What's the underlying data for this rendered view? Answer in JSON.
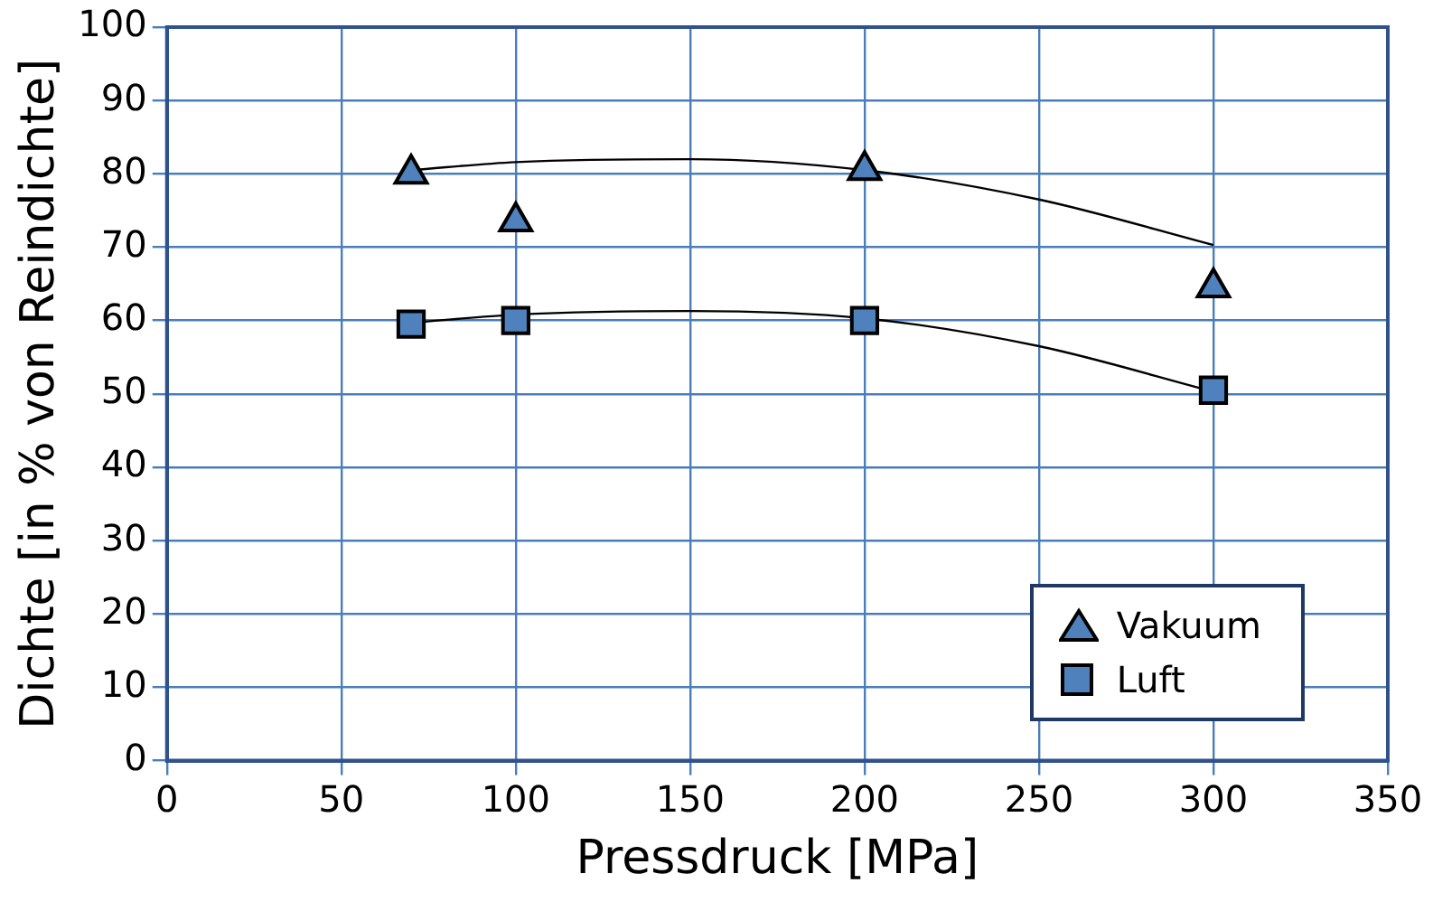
{
  "chart_data": {
    "type": "scatter",
    "xlabel": "Pressdruck [MPa]",
    "ylabel": "Dichte [in % von Reindichte]",
    "xlim": [
      0,
      350
    ],
    "xticks": [
      0,
      50,
      100,
      150,
      200,
      250,
      300,
      350
    ],
    "ylim": [
      0,
      100
    ],
    "yticks": [
      0,
      10,
      20,
      30,
      40,
      50,
      60,
      70,
      80,
      90,
      100
    ],
    "grid": true,
    "legend": "bottom right",
    "series": [
      {
        "name": "Vakuum",
        "color": "#4f81bd",
        "marker": "triangle",
        "x": [
          70,
          100,
          200,
          300
        ],
        "values": [
          80,
          73.5,
          80.5,
          64.5
        ]
      },
      {
        "name": "Luft",
        "color": "#4f81bd",
        "marker": "square",
        "x": [
          70,
          100,
          200,
          300
        ],
        "values": [
          59.5,
          60,
          60,
          50.5
        ]
      },
      {
        "type": "line",
        "color": "#000000",
        "marker": "none",
        "x": [
          70,
          100,
          150,
          200,
          250,
          300
        ],
        "values": [
          80.5,
          81.6,
          82,
          80.5,
          76.5,
          70.3
        ]
      },
      {
        "type": "line",
        "color": "#000000",
        "marker": "none",
        "x": [
          70,
          100,
          150,
          200,
          250,
          300
        ],
        "values": [
          59.7,
          60.8,
          61.3,
          60.3,
          56.5,
          50.3
        ]
      }
    ]
  }
}
